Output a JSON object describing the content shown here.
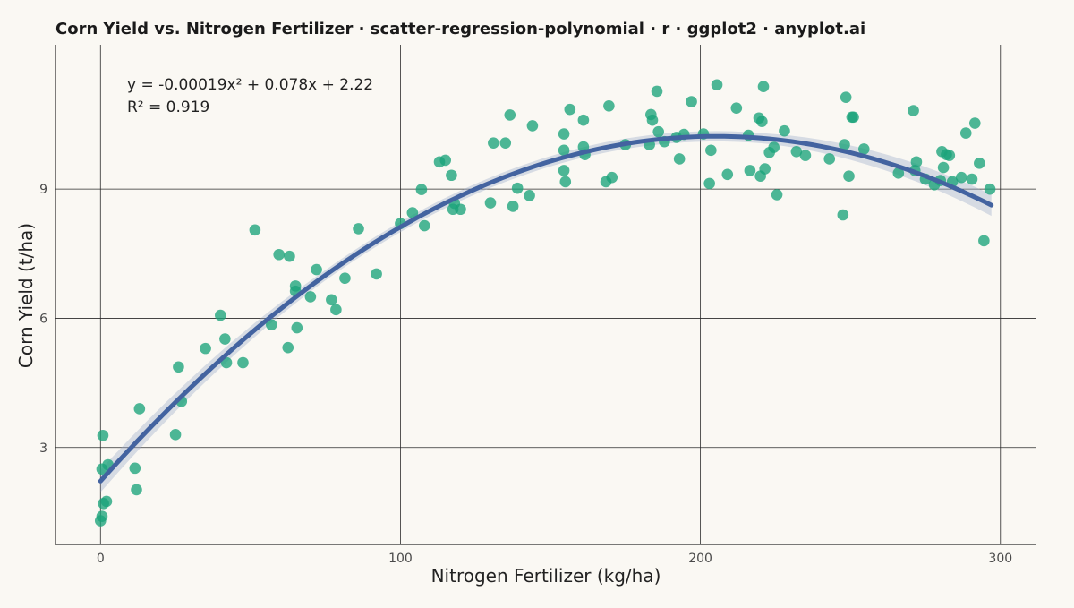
{
  "chart_data": {
    "type": "scatter",
    "title": "Corn Yield vs. Nitrogen Fertilizer · scatter-regression-polynomial · r · ggplot2 · anyplot.ai",
    "xlabel": "Nitrogen Fertilizer (kg/ha)",
    "ylabel": "Corn Yield (t/ha)",
    "xlim": [
      -15,
      312
    ],
    "ylim": [
      0.75,
      12.35
    ],
    "x_ticks": [
      0,
      100,
      200,
      300
    ],
    "y_ticks": [
      3,
      6,
      9
    ],
    "x_tick_labels": [
      "0",
      "100",
      "200",
      "300"
    ],
    "y_tick_labels": [
      "3",
      "6",
      "9"
    ],
    "grid": true,
    "legend": "none",
    "point_color": "#1BA37A",
    "fit_color": "#4363A0",
    "band_color": "#9AAACB",
    "background": "#FAF8F3",
    "annotation": {
      "equation": "y = -0.00019x² + 0.078x + 2.22",
      "r_squared": "R² = 0.919"
    },
    "fit": {
      "type": "polynomial",
      "degree": 2,
      "coefficients": [
        2.22,
        0.078,
        -0.00019
      ],
      "x_range": [
        0,
        297
      ],
      "ci_halfwidth": [
        0.26,
        0.12,
        0.12,
        0.12,
        0.25
      ]
    },
    "points": [
      [
        0,
        1.3
      ],
      [
        0.5,
        1.4
      ],
      [
        1,
        1.7
      ],
      [
        2,
        1.75
      ],
      [
        0.5,
        2.5
      ],
      [
        2.5,
        2.6
      ],
      [
        0.8,
        3.28
      ],
      [
        11.5,
        2.52
      ],
      [
        12,
        2.02
      ],
      [
        13,
        3.9
      ],
      [
        25,
        3.3
      ],
      [
        26,
        4.87
      ],
      [
        27,
        4.07
      ],
      [
        35,
        5.3
      ],
      [
        40,
        6.07
      ],
      [
        41.5,
        5.52
      ],
      [
        42,
        4.97
      ],
      [
        47.5,
        4.97
      ],
      [
        51.5,
        8.05
      ],
      [
        57,
        5.85
      ],
      [
        59.5,
        7.48
      ],
      [
        62.5,
        5.32
      ],
      [
        63,
        7.44
      ],
      [
        65,
        6.75
      ],
      [
        65,
        6.63
      ],
      [
        65.5,
        5.78
      ],
      [
        70,
        6.5
      ],
      [
        72,
        7.13
      ],
      [
        77,
        6.43
      ],
      [
        78.5,
        6.2
      ],
      [
        81.5,
        6.93
      ],
      [
        86,
        8.08
      ],
      [
        92,
        7.03
      ],
      [
        100,
        8.2
      ],
      [
        104,
        8.45
      ],
      [
        107,
        8.99
      ],
      [
        108,
        8.15
      ],
      [
        113,
        9.63
      ],
      [
        115,
        9.67
      ],
      [
        117,
        9.32
      ],
      [
        117.5,
        8.53
      ],
      [
        118,
        8.67
      ],
      [
        120,
        8.53
      ],
      [
        130,
        8.68
      ],
      [
        131,
        10.07
      ],
      [
        135,
        10.07
      ],
      [
        136.5,
        10.72
      ],
      [
        137.5,
        8.6
      ],
      [
        139,
        9.02
      ],
      [
        143,
        8.85
      ],
      [
        144,
        10.47
      ],
      [
        154.5,
        10.28
      ],
      [
        154.5,
        9.9
      ],
      [
        154.5,
        9.43
      ],
      [
        155,
        9.17
      ],
      [
        156.5,
        10.85
      ],
      [
        161,
        10.6
      ],
      [
        161,
        9.98
      ],
      [
        161.5,
        9.8
      ],
      [
        168.5,
        9.17
      ],
      [
        169.5,
        10.93
      ],
      [
        170.5,
        9.27
      ],
      [
        175,
        10.03
      ],
      [
        183,
        10.03
      ],
      [
        183.5,
        10.73
      ],
      [
        184,
        10.6
      ],
      [
        185.5,
        11.27
      ],
      [
        186,
        10.33
      ],
      [
        188,
        10.1
      ],
      [
        192,
        10.2
      ],
      [
        193,
        9.7
      ],
      [
        194.5,
        10.27
      ],
      [
        197,
        11.03
      ],
      [
        201,
        10.28
      ],
      [
        203,
        9.13
      ],
      [
        203.5,
        9.9
      ],
      [
        205.5,
        11.42
      ],
      [
        209,
        9.34
      ],
      [
        212,
        10.88
      ],
      [
        216,
        10.25
      ],
      [
        216.5,
        9.43
      ],
      [
        219.5,
        10.65
      ],
      [
        220,
        9.3
      ],
      [
        220.5,
        10.57
      ],
      [
        221,
        11.38
      ],
      [
        221.5,
        9.47
      ],
      [
        223,
        9.85
      ],
      [
        224.5,
        9.97
      ],
      [
        225.5,
        8.87
      ],
      [
        228,
        10.35
      ],
      [
        232,
        9.87
      ],
      [
        235,
        9.78
      ],
      [
        243,
        9.7
      ],
      [
        247.5,
        8.4
      ],
      [
        248,
        10.03
      ],
      [
        248.5,
        11.13
      ],
      [
        249.5,
        9.3
      ],
      [
        250.5,
        10.67
      ],
      [
        251,
        10.67
      ],
      [
        254.5,
        9.93
      ],
      [
        266,
        9.37
      ],
      [
        271,
        10.82
      ],
      [
        271.5,
        9.43
      ],
      [
        272,
        9.63
      ],
      [
        275,
        9.23
      ],
      [
        278,
        9.1
      ],
      [
        280,
        9.2
      ],
      [
        280.5,
        9.87
      ],
      [
        281,
        9.5
      ],
      [
        282,
        9.8
      ],
      [
        283,
        9.78
      ],
      [
        284,
        9.17
      ],
      [
        287,
        9.27
      ],
      [
        288.5,
        10.3
      ],
      [
        290.5,
        9.23
      ],
      [
        291.5,
        10.53
      ],
      [
        293,
        9.6
      ],
      [
        294.5,
        7.8
      ],
      [
        296.5,
        9.0
      ]
    ]
  }
}
